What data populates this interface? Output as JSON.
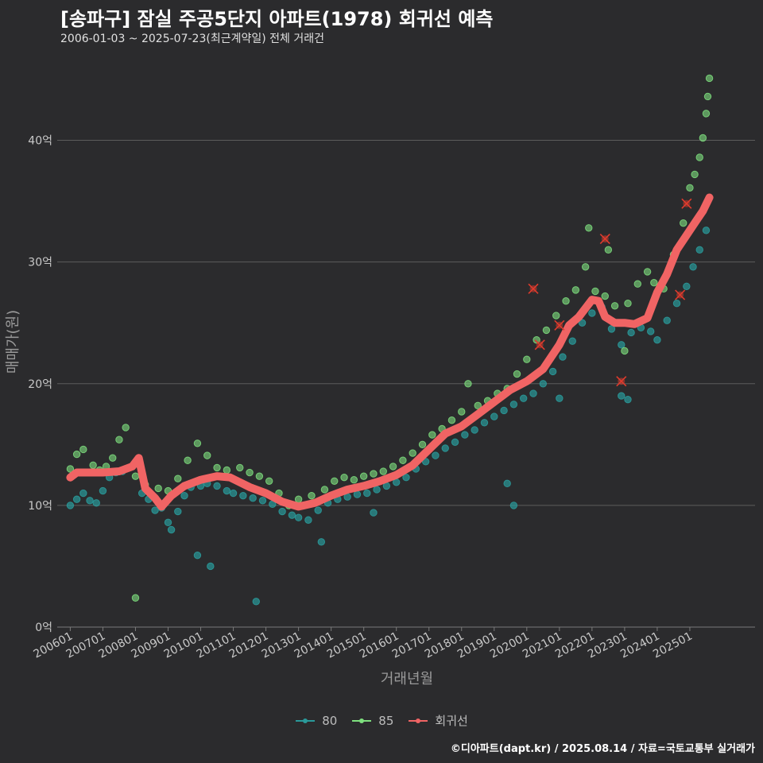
{
  "title": "[송파구] 잠실 주공5단지 아파트(1978) 회귀선 예측",
  "subtitle": "2006-01-03 ~ 2025-07-23(최근계약일) 전체 거래건",
  "caption": "©디아파트(dapt.kr) / 2025.08.14 / 자료=국토교통부 실거래가",
  "chart_data": {
    "type": "scatter",
    "xlabel": "거래년월",
    "ylabel": "매매가(원)",
    "ylim": [
      0,
      45
    ],
    "yticks": [
      0,
      10,
      20,
      30,
      40
    ],
    "ytick_labels": [
      "0억",
      "10억",
      "20억",
      "30억",
      "40억"
    ],
    "xlim": [
      2005.6,
      2027.0
    ],
    "xticks": [
      2006,
      2007,
      2008,
      2009,
      2010,
      2011,
      2012,
      2013,
      2014,
      2015,
      2016,
      2017,
      2018,
      2019,
      2020,
      2021,
      2022,
      2023,
      2024,
      2025
    ],
    "xtick_labels": [
      "200601",
      "200701",
      "200801",
      "200901",
      "201001",
      "201101",
      "201201",
      "201301",
      "201401",
      "201501",
      "201601",
      "201701",
      "201801",
      "201901",
      "202001",
      "202101",
      "202201",
      "202301",
      "202401",
      "202501"
    ],
    "grid": "horizontal",
    "legend_position": "bottom",
    "colors": {
      "80": "#2a9a9a",
      "85": "#7ee07e",
      "regression": "#f06464",
      "outlier": "#e03b2d"
    },
    "series": [
      {
        "name": "80",
        "kind": "scatter",
        "points": [
          [
            2006.0,
            10.0
          ],
          [
            2006.2,
            10.5
          ],
          [
            2006.4,
            11.0
          ],
          [
            2006.6,
            10.4
          ],
          [
            2006.8,
            10.2
          ],
          [
            2007.0,
            11.2
          ],
          [
            2007.2,
            12.3
          ],
          [
            2007.4,
            12.7
          ],
          [
            2007.6,
            12.8
          ],
          [
            2008.2,
            11.0
          ],
          [
            2008.4,
            10.5
          ],
          [
            2008.6,
            9.6
          ],
          [
            2008.8,
            9.8
          ],
          [
            2009.0,
            8.6
          ],
          [
            2009.1,
            8.0
          ],
          [
            2009.3,
            9.5
          ],
          [
            2009.5,
            10.8
          ],
          [
            2009.7,
            11.5
          ],
          [
            2010.0,
            11.6
          ],
          [
            2010.2,
            11.8
          ],
          [
            2010.5,
            11.6
          ],
          [
            2010.8,
            11.2
          ],
          [
            2011.0,
            11.0
          ],
          [
            2011.3,
            10.8
          ],
          [
            2011.6,
            10.6
          ],
          [
            2011.9,
            10.4
          ],
          [
            2012.2,
            10.1
          ],
          [
            2012.5,
            9.5
          ],
          [
            2012.8,
            9.2
          ],
          [
            2013.0,
            9.0
          ],
          [
            2013.3,
            8.8
          ],
          [
            2013.6,
            9.6
          ],
          [
            2013.9,
            10.2
          ],
          [
            2014.2,
            10.5
          ],
          [
            2014.5,
            10.7
          ],
          [
            2014.8,
            10.9
          ],
          [
            2015.1,
            11.0
          ],
          [
            2015.4,
            11.3
          ],
          [
            2015.7,
            11.6
          ],
          [
            2016.0,
            11.9
          ],
          [
            2016.3,
            12.3
          ],
          [
            2016.6,
            13.0
          ],
          [
            2016.9,
            13.6
          ],
          [
            2017.2,
            14.1
          ],
          [
            2017.5,
            14.7
          ],
          [
            2017.8,
            15.2
          ],
          [
            2018.1,
            15.8
          ],
          [
            2018.4,
            16.2
          ],
          [
            2018.7,
            16.8
          ],
          [
            2019.0,
            17.3
          ],
          [
            2019.3,
            17.8
          ],
          [
            2019.6,
            18.3
          ],
          [
            2019.9,
            18.8
          ],
          [
            2020.2,
            19.2
          ],
          [
            2020.5,
            20.0
          ],
          [
            2020.8,
            21.0
          ],
          [
            2021.1,
            22.2
          ],
          [
            2021.4,
            23.5
          ],
          [
            2021.7,
            25.0
          ],
          [
            2022.0,
            25.8
          ],
          [
            2022.3,
            26.3
          ],
          [
            2022.6,
            24.5
          ],
          [
            2022.9,
            23.2
          ],
          [
            2023.2,
            24.2
          ],
          [
            2023.5,
            24.6
          ],
          [
            2023.8,
            24.3
          ],
          [
            2024.0,
            23.6
          ],
          [
            2024.3,
            25.2
          ],
          [
            2024.6,
            26.6
          ],
          [
            2024.9,
            28.0
          ],
          [
            2025.1,
            29.6
          ],
          [
            2025.3,
            31.0
          ],
          [
            2025.5,
            32.6
          ],
          [
            2009.9,
            5.9
          ],
          [
            2010.3,
            5.0
          ],
          [
            2011.7,
            2.1
          ],
          [
            2013.7,
            7.0
          ],
          [
            2015.3,
            9.4
          ],
          [
            2019.4,
            11.8
          ],
          [
            2019.6,
            10.0
          ],
          [
            2021.0,
            18.8
          ],
          [
            2022.9,
            19.0
          ],
          [
            2023.1,
            18.7
          ]
        ]
      },
      {
        "name": "85",
        "kind": "scatter",
        "points": [
          [
            2006.0,
            13.0
          ],
          [
            2006.2,
            14.2
          ],
          [
            2006.4,
            14.6
          ],
          [
            2006.7,
            13.3
          ],
          [
            2006.9,
            12.9
          ],
          [
            2007.1,
            13.2
          ],
          [
            2007.3,
            13.9
          ],
          [
            2007.5,
            15.4
          ],
          [
            2007.7,
            16.4
          ],
          [
            2008.0,
            12.4
          ],
          [
            2008.3,
            11.7
          ],
          [
            2008.7,
            11.4
          ],
          [
            2009.0,
            11.2
          ],
          [
            2009.3,
            12.2
          ],
          [
            2009.6,
            13.7
          ],
          [
            2009.9,
            15.1
          ],
          [
            2010.2,
            14.1
          ],
          [
            2010.5,
            13.1
          ],
          [
            2010.8,
            12.9
          ],
          [
            2011.2,
            13.1
          ],
          [
            2011.5,
            12.7
          ],
          [
            2011.8,
            12.4
          ],
          [
            2012.1,
            12.0
          ],
          [
            2012.4,
            11.0
          ],
          [
            2012.7,
            10.0
          ],
          [
            2013.0,
            10.5
          ],
          [
            2013.4,
            10.8
          ],
          [
            2013.8,
            11.3
          ],
          [
            2014.1,
            12.0
          ],
          [
            2014.4,
            12.3
          ],
          [
            2014.7,
            12.1
          ],
          [
            2015.0,
            12.4
          ],
          [
            2015.3,
            12.6
          ],
          [
            2015.6,
            12.8
          ],
          [
            2015.9,
            13.2
          ],
          [
            2016.2,
            13.7
          ],
          [
            2016.5,
            14.3
          ],
          [
            2016.8,
            15.0
          ],
          [
            2017.1,
            15.8
          ],
          [
            2017.4,
            16.3
          ],
          [
            2017.7,
            17.0
          ],
          [
            2018.0,
            17.7
          ],
          [
            2018.2,
            20.0
          ],
          [
            2018.5,
            18.2
          ],
          [
            2018.8,
            18.6
          ],
          [
            2019.1,
            19.2
          ],
          [
            2019.4,
            19.6
          ],
          [
            2019.7,
            20.8
          ],
          [
            2020.0,
            22.0
          ],
          [
            2020.3,
            23.6
          ],
          [
            2020.6,
            24.4
          ],
          [
            2020.9,
            25.6
          ],
          [
            2021.2,
            26.8
          ],
          [
            2021.5,
            27.7
          ],
          [
            2021.8,
            29.6
          ],
          [
            2022.1,
            27.6
          ],
          [
            2022.4,
            27.2
          ],
          [
            2022.7,
            26.4
          ],
          [
            2022.9,
            25.0
          ],
          [
            2023.1,
            26.6
          ],
          [
            2023.4,
            28.2
          ],
          [
            2023.7,
            29.2
          ],
          [
            2023.9,
            28.3
          ],
          [
            2024.2,
            27.8
          ],
          [
            2024.5,
            30.6
          ],
          [
            2024.8,
            33.2
          ],
          [
            2025.0,
            36.1
          ],
          [
            2025.15,
            37.2
          ],
          [
            2025.3,
            38.6
          ],
          [
            2025.4,
            40.2
          ],
          [
            2025.5,
            42.2
          ],
          [
            2025.55,
            43.6
          ],
          [
            2025.6,
            45.1
          ],
          [
            2008.0,
            2.4
          ],
          [
            2021.9,
            32.8
          ],
          [
            2022.5,
            31.0
          ],
          [
            2023.0,
            22.7
          ]
        ]
      },
      {
        "name": "회귀선",
        "kind": "line",
        "points": [
          [
            2006.0,
            12.3
          ],
          [
            2006.2,
            12.7
          ],
          [
            2006.5,
            12.7
          ],
          [
            2007.0,
            12.7
          ],
          [
            2007.5,
            12.8
          ],
          [
            2007.9,
            13.2
          ],
          [
            2008.1,
            13.9
          ],
          [
            2008.3,
            11.4
          ],
          [
            2008.6,
            10.6
          ],
          [
            2008.8,
            9.9
          ],
          [
            2009.1,
            10.8
          ],
          [
            2009.5,
            11.6
          ],
          [
            2010.0,
            12.1
          ],
          [
            2010.5,
            12.4
          ],
          [
            2010.9,
            12.3
          ],
          [
            2011.2,
            11.9
          ],
          [
            2011.5,
            11.5
          ],
          [
            2012.0,
            11.0
          ],
          [
            2012.5,
            10.3
          ],
          [
            2013.0,
            9.9
          ],
          [
            2013.5,
            10.2
          ],
          [
            2014.0,
            10.8
          ],
          [
            2014.5,
            11.3
          ],
          [
            2015.0,
            11.6
          ],
          [
            2015.5,
            12.0
          ],
          [
            2016.0,
            12.5
          ],
          [
            2016.5,
            13.3
          ],
          [
            2017.0,
            14.6
          ],
          [
            2017.5,
            15.9
          ],
          [
            2018.0,
            16.5
          ],
          [
            2018.5,
            17.5
          ],
          [
            2019.0,
            18.5
          ],
          [
            2019.5,
            19.5
          ],
          [
            2020.0,
            20.2
          ],
          [
            2020.5,
            21.2
          ],
          [
            2021.0,
            23.2
          ],
          [
            2021.3,
            24.8
          ],
          [
            2021.6,
            25.5
          ],
          [
            2022.0,
            26.9
          ],
          [
            2022.2,
            26.8
          ],
          [
            2022.4,
            25.5
          ],
          [
            2022.7,
            25.0
          ],
          [
            2023.0,
            25.0
          ],
          [
            2023.3,
            24.9
          ],
          [
            2023.7,
            25.4
          ],
          [
            2024.0,
            27.5
          ],
          [
            2024.3,
            29.0
          ],
          [
            2024.6,
            31.0
          ],
          [
            2024.9,
            32.2
          ],
          [
            2025.2,
            33.4
          ],
          [
            2025.4,
            34.2
          ],
          [
            2025.6,
            35.3
          ]
        ]
      },
      {
        "name": "outliers",
        "kind": "marker",
        "points": [
          [
            2020.2,
            27.8
          ],
          [
            2020.4,
            23.2
          ],
          [
            2021.0,
            24.8
          ],
          [
            2022.4,
            31.9
          ],
          [
            2022.9,
            20.2
          ],
          [
            2024.7,
            27.3
          ],
          [
            2024.9,
            34.8
          ]
        ]
      }
    ]
  }
}
